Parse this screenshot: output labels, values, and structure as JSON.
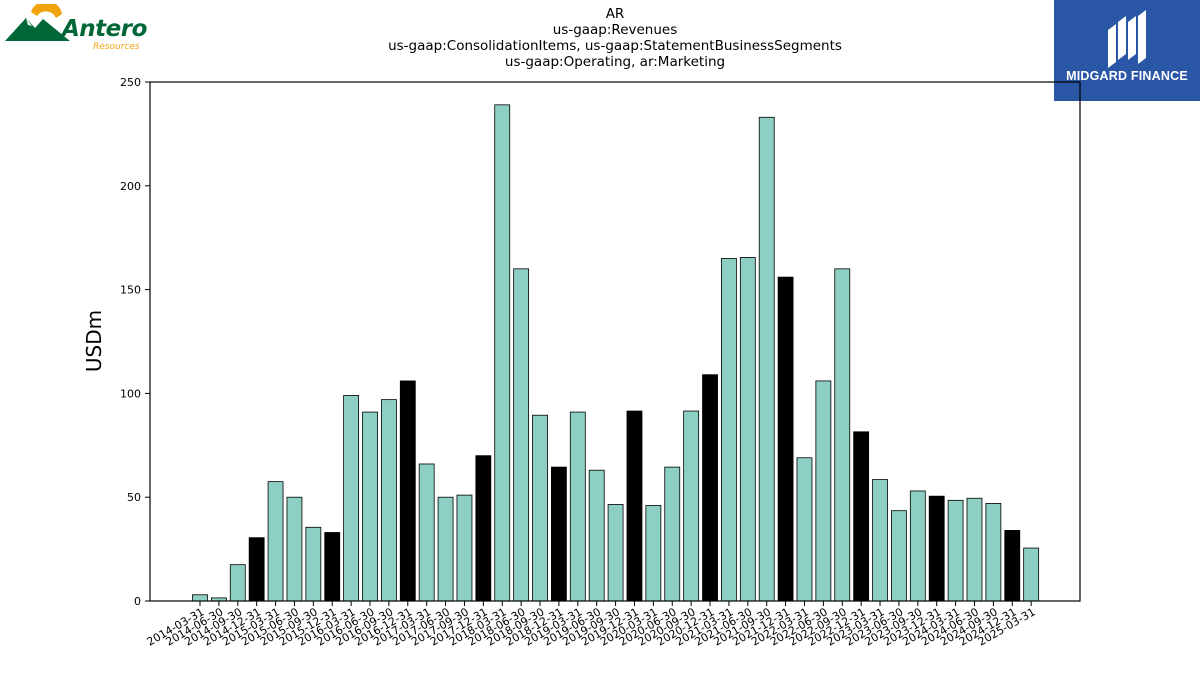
{
  "header": {
    "title_lines": [
      "AR",
      "us-gaap:Revenues",
      "us-gaap:ConsolidationItems, us-gaap:StatementBusinessSegments",
      "us-gaap:Operating, ar:Marketing"
    ]
  },
  "logo_left": {
    "brand": "Antero",
    "tagline": "Resources"
  },
  "logo_right": {
    "brand": "MIDGARD FINANCE"
  },
  "chart_data": {
    "type": "bar",
    "ylabel": "USDm",
    "xlabel": "",
    "ylim": [
      0,
      250
    ],
    "yticks": [
      0,
      50,
      100,
      150,
      200,
      250
    ],
    "grid": false,
    "colors": {
      "quarter": "#8ecfc4",
      "year_end": "#000000"
    },
    "categories": [
      "2014-03-31",
      "2014-06-30",
      "2014-09-30",
      "2014-12-31",
      "2015-03-31",
      "2015-06-30",
      "2015-09-30",
      "2015-12-31",
      "2016-03-31",
      "2016-06-30",
      "2016-09-30",
      "2016-12-31",
      "2017-03-31",
      "2017-06-30",
      "2017-09-30",
      "2017-12-31",
      "2018-03-31",
      "2018-06-30",
      "2018-09-30",
      "2018-12-31",
      "2019-03-31",
      "2019-06-30",
      "2019-09-30",
      "2019-12-31",
      "2020-03-31",
      "2020-06-30",
      "2020-09-30",
      "2020-12-31",
      "2021-03-31",
      "2021-06-30",
      "2021-09-30",
      "2021-12-31",
      "2022-03-31",
      "2022-06-30",
      "2022-09-30",
      "2022-12-31",
      "2023-03-31",
      "2023-06-30",
      "2023-09-30",
      "2023-12-31",
      "2024-03-31",
      "2024-06-30",
      "2024-09-30",
      "2024-12-31",
      "2025-03-31"
    ],
    "values": [
      3,
      1.5,
      17.5,
      30.5,
      57.5,
      50,
      35.5,
      33,
      99,
      91,
      97,
      106,
      66,
      50,
      51,
      70,
      239,
      160,
      89.5,
      64.5,
      91,
      63,
      46.5,
      91.5,
      46,
      64.5,
      91.5,
      109,
      165,
      165.5,
      233,
      156,
      69,
      106,
      160,
      81.5,
      58.5,
      43.5,
      53,
      50.5,
      48.5,
      49.5,
      47,
      34,
      25.5
    ]
  }
}
